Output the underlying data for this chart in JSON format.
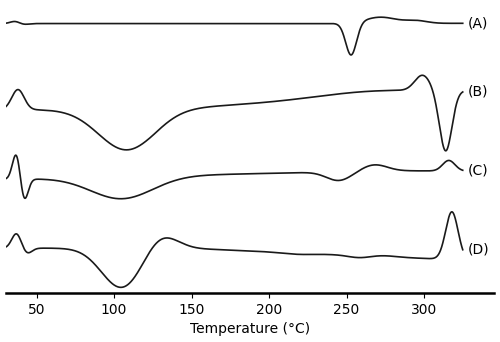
{
  "x_min": 30,
  "x_max": 325,
  "xlabel": "Temperature (°C)",
  "xticks": [
    50,
    100,
    150,
    200,
    250,
    300
  ],
  "label_A": "(A)",
  "label_B": "(B)",
  "label_C": "(C)",
  "label_D": "(D)",
  "background_color": "#ffffff",
  "line_color": "#1a1a1a",
  "line_width": 1.2,
  "font_size": 10
}
